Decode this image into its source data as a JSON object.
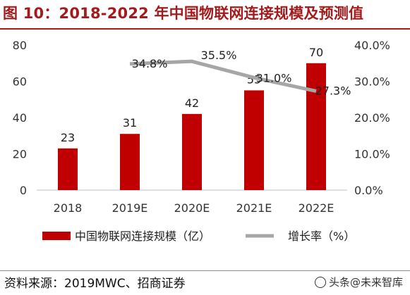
{
  "header": {
    "title": "图 10：2018-2022 年中国物联网连接规模及预测值"
  },
  "footer": {
    "source": "资料来源：2019MWC、招商证券",
    "watermark": "头条@未来智库"
  },
  "colors": {
    "bar": "#c00000",
    "line": "#a6a6a6",
    "title": "#a31b1d"
  },
  "chart_data": {
    "type": "bar",
    "categories": [
      "2018",
      "2019E",
      "2020E",
      "2021E",
      "2022E"
    ],
    "series": [
      {
        "name": "中国物联网连接规模（亿）",
        "type": "bar",
        "axis": "left",
        "values": [
          23,
          31,
          42,
          55,
          70
        ],
        "labels": [
          "23",
          "31",
          "42",
          "55",
          "70"
        ]
      },
      {
        "name": "增长率（%）",
        "type": "line",
        "axis": "right",
        "values": [
          null,
          34.8,
          35.5,
          31.0,
          27.3
        ],
        "labels": [
          "",
          "34.8%",
          "35.5%",
          "31.0%",
          "27.3%"
        ]
      }
    ],
    "y_left": {
      "min": 0,
      "max": 80,
      "ticks": [
        "0",
        "20",
        "40",
        "60",
        "80"
      ]
    },
    "y_right": {
      "min": 0,
      "max": 40,
      "ticks": [
        "0.0%",
        "10.0%",
        "20.0%",
        "30.0%",
        "40.0%"
      ]
    },
    "grid": false,
    "legend_position": "bottom"
  }
}
